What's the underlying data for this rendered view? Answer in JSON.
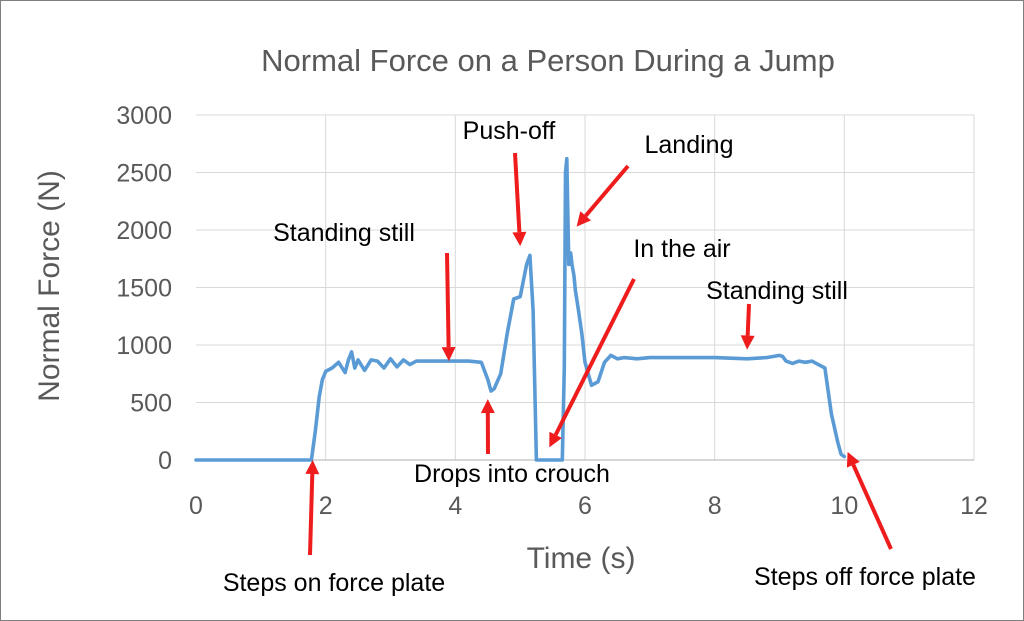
{
  "chart_data": {
    "type": "line",
    "title": "Normal Force on a Person During a Jump",
    "xlabel": "Time (s)",
    "ylabel": "Normal Force (N)",
    "xlim": [
      0,
      12
    ],
    "ylim": [
      0,
      3000
    ],
    "x_ticks": [
      0,
      2,
      4,
      6,
      8,
      10,
      12
    ],
    "y_ticks": [
      0,
      500,
      1000,
      1500,
      2000,
      2500,
      3000
    ],
    "grid": "horizontal and vertical",
    "line_color": "#5b9bd5",
    "arrow_color": "#ee1c1c",
    "series": [
      {
        "x": [
          0,
          1.0,
          1.78,
          1.84,
          1.9,
          1.95,
          2.0,
          2.1,
          2.2,
          2.3,
          2.35,
          2.4,
          2.45,
          2.5,
          2.6,
          2.7,
          2.8,
          2.9,
          3.0,
          3.1,
          3.2,
          3.3,
          3.4,
          3.6,
          3.8,
          4.0,
          4.2,
          4.4,
          4.5,
          4.55,
          4.6,
          4.7,
          4.8,
          4.9,
          5.0,
          5.1,
          5.15,
          5.2,
          5.25,
          5.3,
          5.4,
          5.5,
          5.6,
          5.65,
          5.68,
          5.7,
          5.72,
          5.75,
          5.78,
          5.8,
          5.83,
          5.85,
          5.9,
          5.95,
          6.0,
          6.1,
          6.2,
          6.3,
          6.4,
          6.5,
          6.6,
          6.8,
          7.0,
          7.5,
          8.0,
          8.5,
          8.8,
          9.0,
          9.05,
          9.1,
          9.2,
          9.3,
          9.4,
          9.5,
          9.6,
          9.7,
          9.8,
          9.9,
          9.95,
          10.0
        ],
        "y": [
          0,
          0,
          0,
          250,
          550,
          700,
          770,
          800,
          850,
          760,
          870,
          940,
          800,
          870,
          780,
          870,
          860,
          800,
          880,
          810,
          870,
          830,
          860,
          860,
          860,
          860,
          860,
          850,
          700,
          600,
          620,
          750,
          1100,
          1400,
          1420,
          1700,
          1780,
          1300,
          0,
          0,
          0,
          0,
          0,
          0,
          800,
          2500,
          2620,
          1700,
          1800,
          1700,
          1600,
          1480,
          1300,
          1100,
          850,
          650,
          680,
          850,
          910,
          880,
          890,
          880,
          890,
          890,
          890,
          880,
          890,
          910,
          900,
          860,
          840,
          860,
          850,
          860,
          830,
          800,
          400,
          150,
          50,
          30
        ]
      }
    ],
    "annotations": [
      {
        "text": "Standing still",
        "tip": [
          3.9,
          860
        ]
      },
      {
        "text": "Push-off",
        "tip": [
          5.0,
          1860
        ]
      },
      {
        "text": "Landing",
        "tip": [
          5.87,
          2030
        ]
      },
      {
        "text": "In the air",
        "tip": [
          5.45,
          110
        ]
      },
      {
        "text": "Standing still",
        "tip": [
          8.5,
          960
        ]
      },
      {
        "text": "Drops into crouch",
        "tip": [
          4.5,
          530
        ]
      },
      {
        "text": "Steps on force plate",
        "tip": [
          1.8,
          0
        ]
      },
      {
        "text": "Steps off force plate",
        "tip": [
          10.05,
          70
        ]
      }
    ]
  }
}
